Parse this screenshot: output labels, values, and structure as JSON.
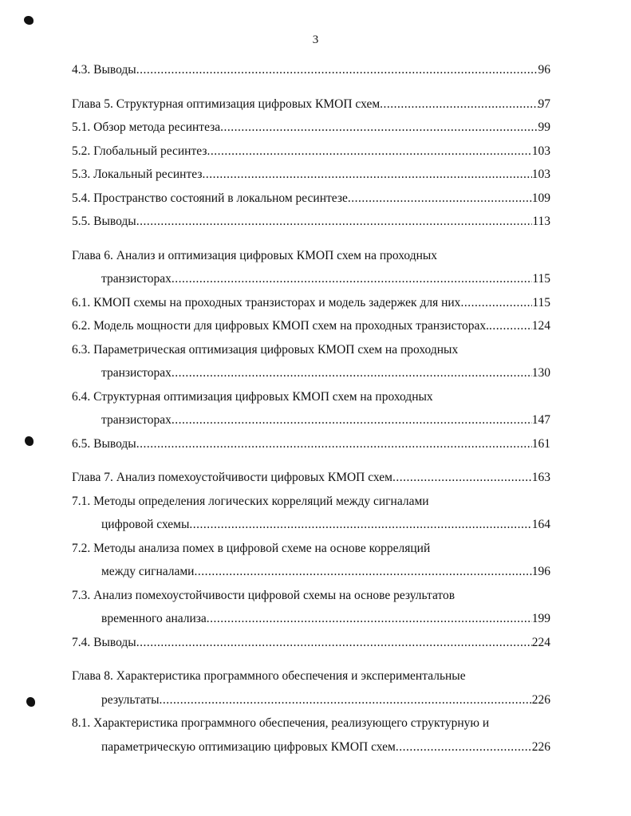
{
  "page_number": "3",
  "toc": [
    {
      "chapter": false,
      "lines": [
        "4.3. Выводы"
      ],
      "page": "96"
    },
    {
      "chapter": true,
      "lines": [
        "Глава 5. Структурная оптимизация цифровых КМОП схем"
      ],
      "page": " 97"
    },
    {
      "chapter": false,
      "lines": [
        "5.1. Обзор метода ресинтеза"
      ],
      "page": "99"
    },
    {
      "chapter": false,
      "lines": [
        "5.2. Глобальный ресинтез"
      ],
      "page": "103"
    },
    {
      "chapter": false,
      "lines": [
        "5.3. Локальный ресинтез"
      ],
      "page": "103"
    },
    {
      "chapter": false,
      "lines": [
        "5.4. Пространство состояний в локальном ресинтезе"
      ],
      "page": "109"
    },
    {
      "chapter": false,
      "lines": [
        "5.5. Выводы"
      ],
      "page": "113"
    },
    {
      "chapter": true,
      "lines": [
        "Глава 6. Анализ и оптимизация цифровых КМОП схем на проходных",
        "транзисторах"
      ],
      "page": "115"
    },
    {
      "chapter": false,
      "lines": [
        "6.1. КМОП схемы на проходных транзисторах и модель задержек для них"
      ],
      "page": "115"
    },
    {
      "chapter": false,
      "lines": [
        "6.2. Модель мощности для цифровых КМОП схем на проходных транзисторах."
      ],
      "page": "124"
    },
    {
      "chapter": false,
      "lines": [
        "6.3. Параметрическая оптимизация цифровых КМОП схем на проходных",
        "транзисторах"
      ],
      "page": "130"
    },
    {
      "chapter": false,
      "lines": [
        "6.4. Структурная оптимизация цифровых КМОП схем на проходных",
        "транзисторах"
      ],
      "page": "147"
    },
    {
      "chapter": false,
      "lines": [
        "6.5. Выводы"
      ],
      "page": "161"
    },
    {
      "chapter": true,
      "lines": [
        "Глава 7. Анализ помехоустойчивости цифровых КМОП схем"
      ],
      "page": " 163"
    },
    {
      "chapter": false,
      "lines": [
        "7.1. Методы определения логических корреляций между сигналами",
        "цифровой схемы"
      ],
      "page": "164"
    },
    {
      "chapter": false,
      "lines": [
        "7.2. Методы анализа помех в цифровой схеме на основе корреляций",
        "между сигналами"
      ],
      "page": " 196"
    },
    {
      "chapter": false,
      "lines": [
        "7.3. Анализ помехоустойчивости цифровой схемы на основе результатов",
        "временного анализа"
      ],
      "page": "199"
    },
    {
      "chapter": false,
      "lines": [
        "7.4. Выводы"
      ],
      "page": "224"
    },
    {
      "chapter": true,
      "lines": [
        "Глава 8. Характеристика программного обеспечения и экспериментальные",
        "результаты"
      ],
      "page": " 226"
    },
    {
      "chapter": false,
      "lines": [
        "8.1. Характеристика программного обеспечения, реализующего структурную и",
        "параметрическую оптимизацию цифровых КМОП схем"
      ],
      "page": " 226"
    }
  ]
}
